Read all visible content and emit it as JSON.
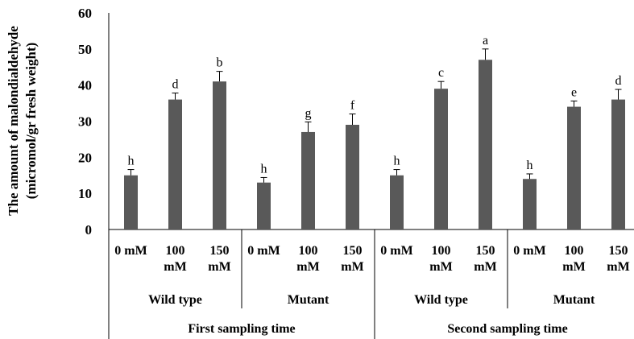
{
  "chart_data": {
    "type": "bar",
    "ylabel_lines": [
      "The amount of malondialdehyde",
      "(micromol/gr fresh weight)"
    ],
    "xlabel": "",
    "ylim": [
      0,
      60
    ],
    "yticks": [
      "0",
      "10",
      "20",
      "30",
      "40",
      "50",
      "60"
    ],
    "bar_color": "#595959",
    "categories": [
      {
        "label_lines": [
          "0 mM"
        ],
        "value": 15,
        "error": 1.6,
        "letter": "h"
      },
      {
        "label_lines": [
          "100",
          "mM"
        ],
        "value": 36,
        "error": 1.8,
        "letter": "d"
      },
      {
        "label_lines": [
          "150",
          "mM"
        ],
        "value": 41,
        "error": 2.8,
        "letter": "b"
      },
      {
        "label_lines": [
          "0 mM"
        ],
        "value": 13,
        "error": 1.4,
        "letter": "h"
      },
      {
        "label_lines": [
          "100",
          "mM"
        ],
        "value": 27,
        "error": 2.8,
        "letter": "g"
      },
      {
        "label_lines": [
          "150",
          "mM"
        ],
        "value": 29,
        "error": 3.0,
        "letter": "f"
      },
      {
        "label_lines": [
          "0 mM"
        ],
        "value": 15,
        "error": 1.6,
        "letter": "h"
      },
      {
        "label_lines": [
          "100",
          "mM"
        ],
        "value": 39,
        "error": 2.0,
        "letter": "c"
      },
      {
        "label_lines": [
          "150",
          "mM"
        ],
        "value": 47,
        "error": 3.0,
        "letter": "a"
      },
      {
        "label_lines": [
          "0 mM"
        ],
        "value": 14,
        "error": 1.4,
        "letter": "h"
      },
      {
        "label_lines": [
          "100",
          "mM"
        ],
        "value": 34,
        "error": 1.6,
        "letter": "e"
      },
      {
        "label_lines": [
          "150",
          "mM"
        ],
        "value": 36,
        "error": 2.8,
        "letter": "d"
      }
    ],
    "groups_level1": [
      "Wild type",
      "Mutant",
      "Wild type",
      "Mutant"
    ],
    "groups_level2": [
      "First sampling time",
      "Second sampling time"
    ]
  }
}
